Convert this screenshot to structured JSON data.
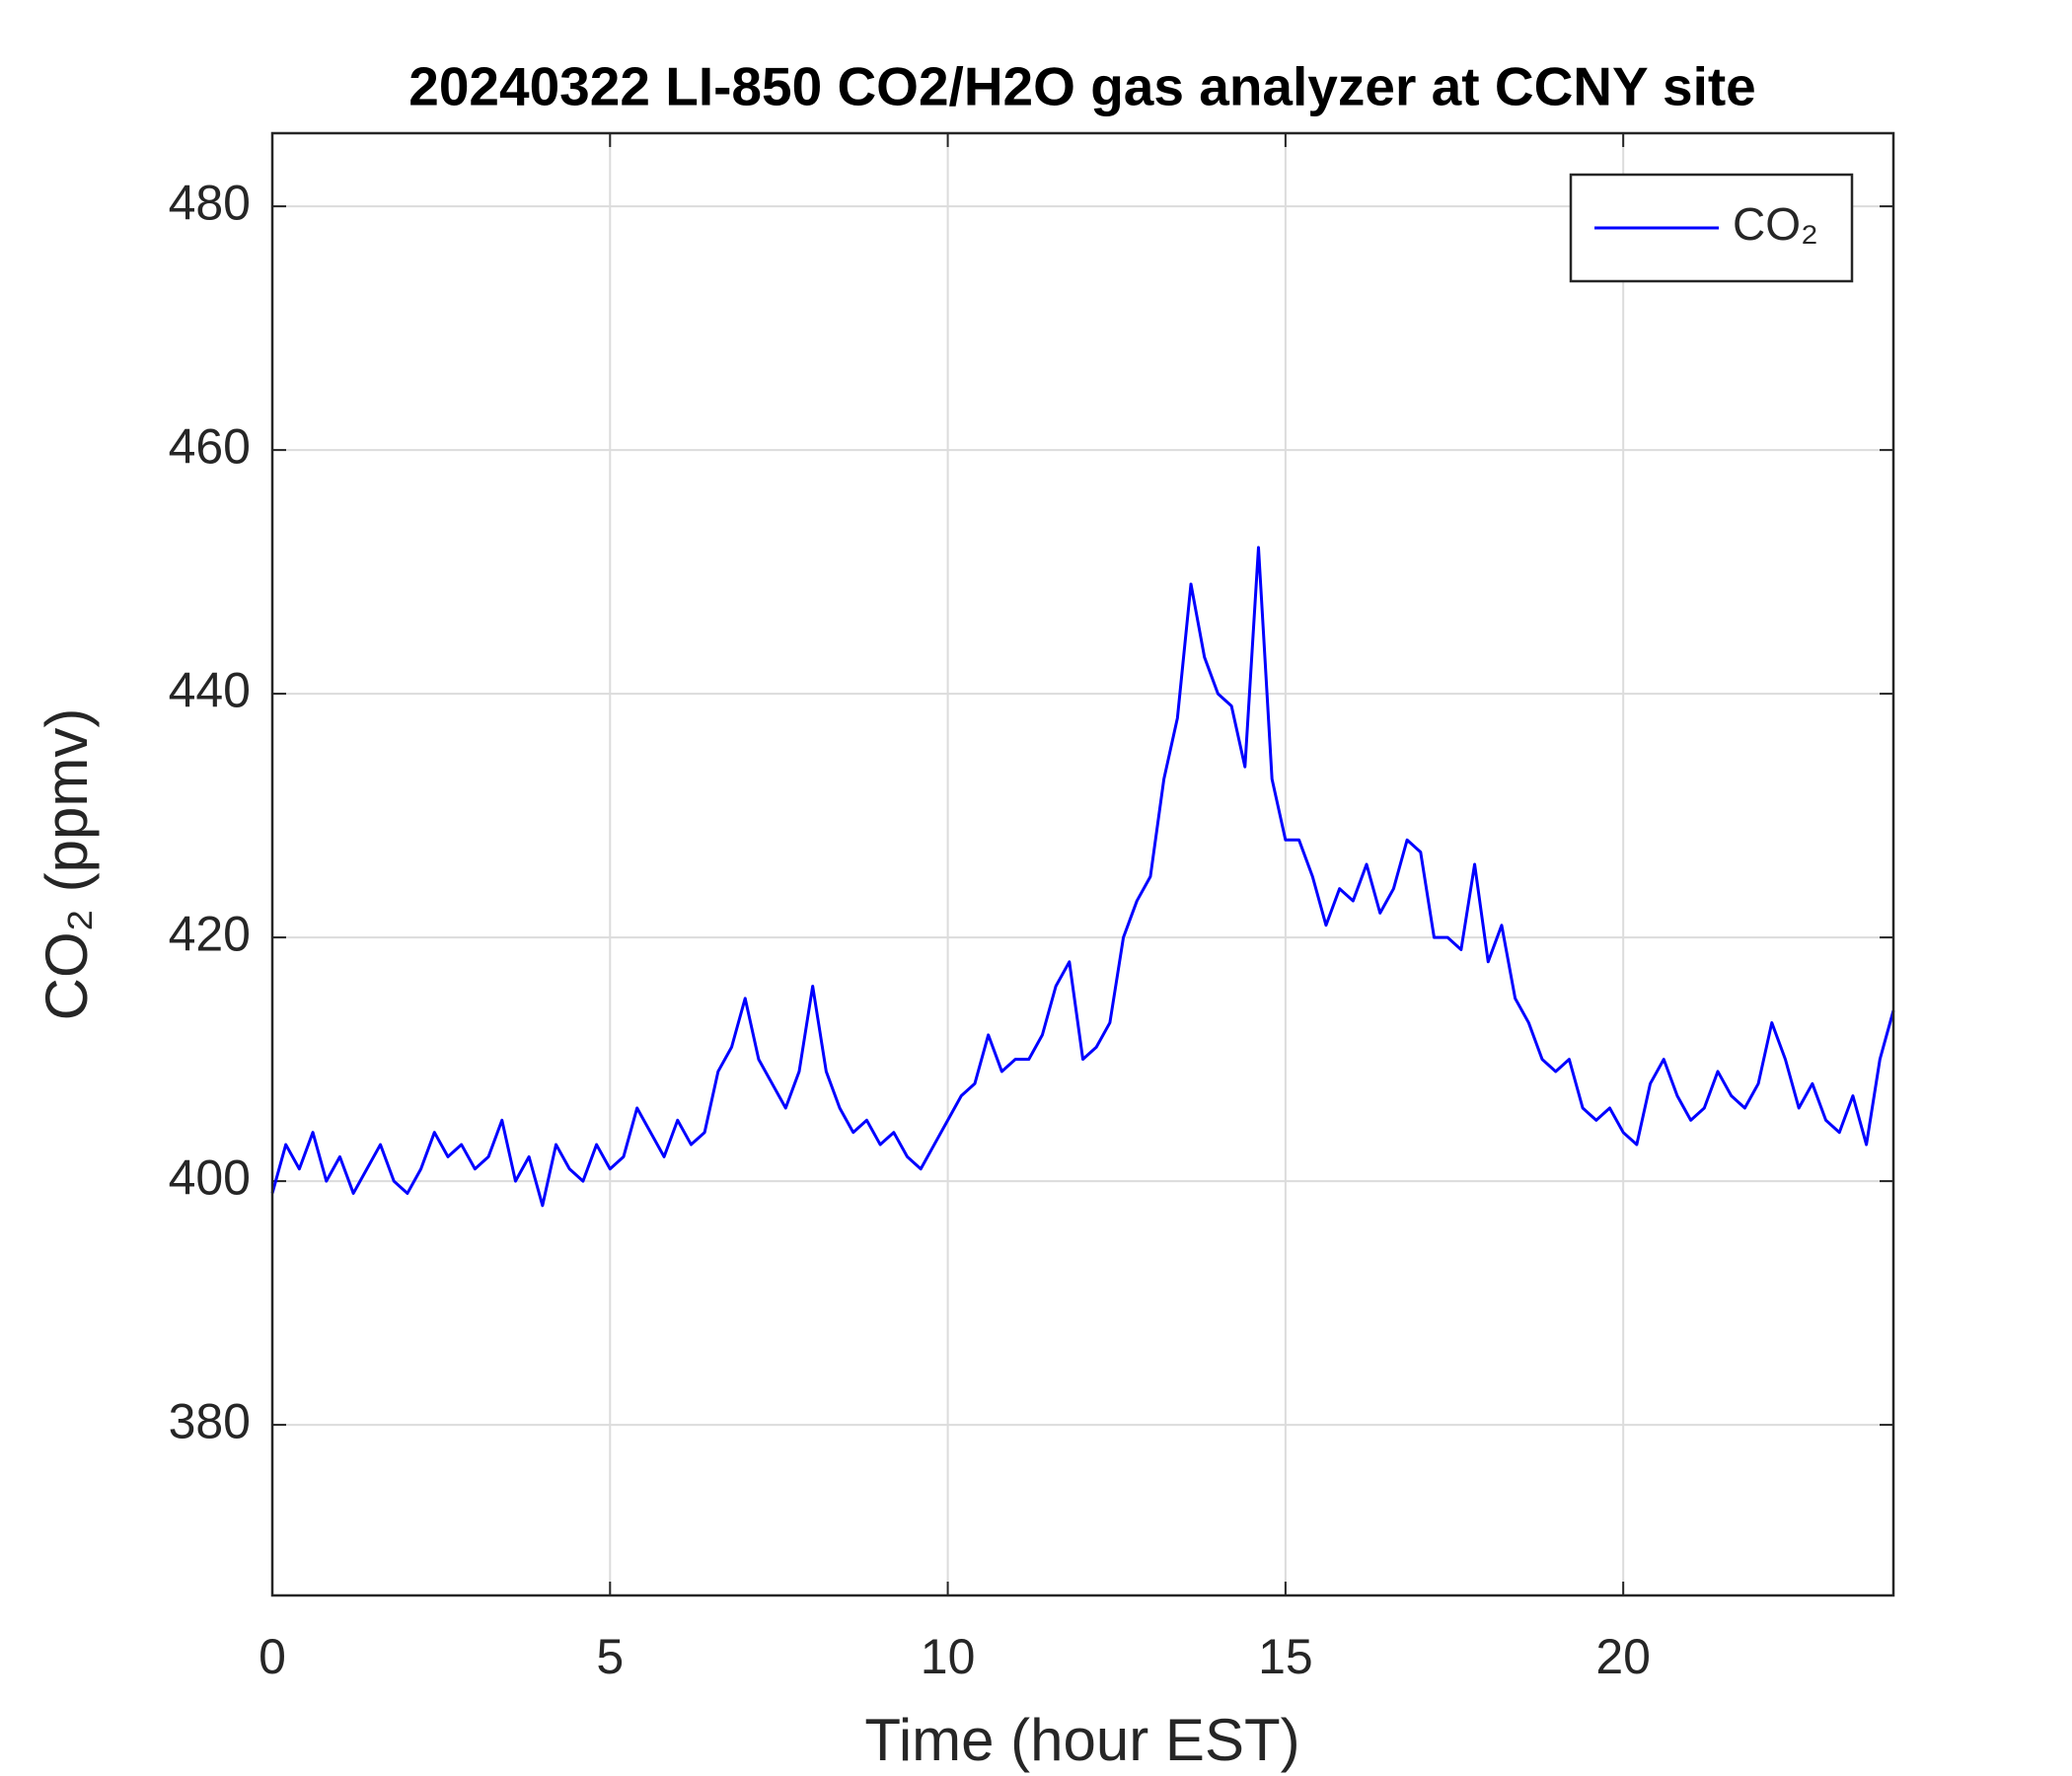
{
  "chart_data": {
    "type": "line",
    "title": "20240322 LI-850 CO2/H2O gas analyzer at CCNY site",
    "xlabel": "Time (hour EST)",
    "ylabel": "CO₂ (ppmv)",
    "xlim": [
      0,
      24
    ],
    "ylim": [
      366,
      486
    ],
    "xticks": [
      0,
      5,
      10,
      15,
      20
    ],
    "yticks": [
      380,
      400,
      420,
      440,
      460,
      480
    ],
    "grid": true,
    "legend": "upper right",
    "x": [
      0,
      0.2,
      0.4,
      0.6,
      0.8,
      1,
      1.2,
      1.4,
      1.6,
      1.8,
      2,
      2.2,
      2.4,
      2.6,
      2.8,
      3,
      3.2,
      3.4,
      3.6,
      3.8,
      4,
      4.2,
      4.4,
      4.6,
      4.8,
      5,
      5.2,
      5.4,
      5.6,
      5.8,
      6,
      6.2,
      6.4,
      6.6,
      6.8,
      7,
      7.2,
      7.4,
      7.6,
      7.8,
      8,
      8.2,
      8.4,
      8.6,
      8.8,
      9,
      9.2,
      9.4,
      9.6,
      9.8,
      10,
      10.2,
      10.4,
      10.6,
      10.8,
      11,
      11.2,
      11.4,
      11.6,
      11.8,
      12,
      12.2,
      12.4,
      12.6,
      12.8,
      13,
      13.2,
      13.4,
      13.6,
      13.8,
      14,
      14.2,
      14.4,
      14.6,
      14.8,
      15,
      15.2,
      15.4,
      15.6,
      15.8,
      16,
      16.2,
      16.4,
      16.6,
      16.8,
      17,
      17.2,
      17.4,
      17.6,
      17.8,
      18,
      18.2,
      18.4,
      18.6,
      18.8,
      19,
      19.2,
      19.4,
      19.6,
      19.8,
      20,
      20.2,
      20.4,
      20.6,
      20.8,
      21,
      21.2,
      21.4,
      21.6,
      21.8,
      22,
      22.2,
      22.4,
      22.6,
      22.8,
      23,
      23.2,
      23.4,
      23.6,
      23.8,
      24
    ],
    "series": [
      {
        "name": "CO₂",
        "color": "#0000ff",
        "values": [
          399,
          403,
          401,
          404,
          400,
          402,
          399,
          401,
          403,
          400,
          399,
          401,
          404,
          402,
          403,
          401,
          402,
          405,
          400,
          402,
          398,
          403,
          401,
          400,
          403,
          401,
          402,
          406,
          404,
          402,
          405,
          403,
          404,
          409,
          411,
          415,
          410,
          408,
          406,
          409,
          416,
          409,
          406,
          404,
          405,
          403,
          404,
          402,
          401,
          403,
          405,
          407,
          408,
          412,
          409,
          410,
          410,
          412,
          416,
          418,
          410,
          411,
          413,
          420,
          423,
          425,
          433,
          438,
          449,
          443,
          440,
          439,
          434,
          452,
          433,
          428,
          428,
          425,
          421,
          424,
          423,
          426,
          422,
          424,
          428,
          427,
          420,
          420,
          419,
          426,
          418,
          421,
          415,
          413,
          410,
          409,
          410,
          406,
          405,
          406,
          404,
          403,
          408,
          410,
          407,
          405,
          406,
          409,
          407,
          406,
          408,
          413,
          410,
          406,
          408,
          405,
          404,
          407,
          403,
          410,
          414
        ]
      }
    ]
  }
}
